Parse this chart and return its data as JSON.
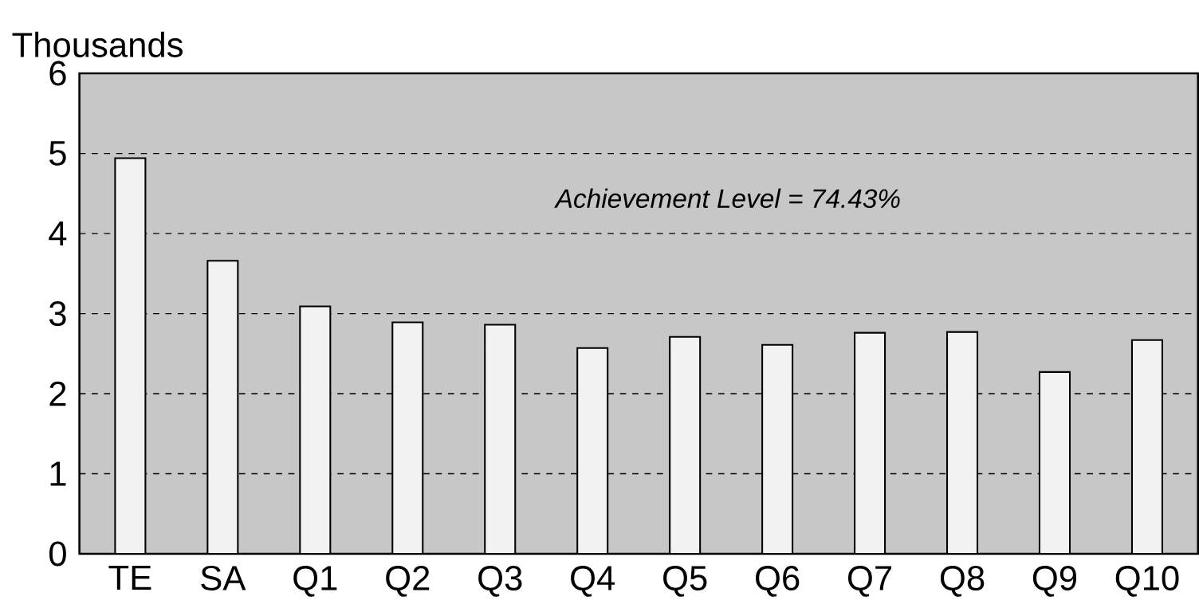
{
  "chart_data": {
    "type": "bar",
    "ylabel": "Thousands",
    "categories": [
      "TE",
      "SA",
      "Q1",
      "Q2",
      "Q3",
      "Q4",
      "Q5",
      "Q6",
      "Q7",
      "Q8",
      "Q9",
      "Q10"
    ],
    "values": [
      4.94,
      3.66,
      3.09,
      2.89,
      2.86,
      2.57,
      2.71,
      2.61,
      2.76,
      2.77,
      2.27,
      2.67
    ],
    "color": "#f2f2f2",
    "ylim": [
      0,
      6
    ],
    "yticks": [
      0,
      1,
      2,
      3,
      4,
      5,
      6
    ],
    "grid": "y",
    "annotations": [
      "Achievement Level = 74.43%"
    ]
  }
}
